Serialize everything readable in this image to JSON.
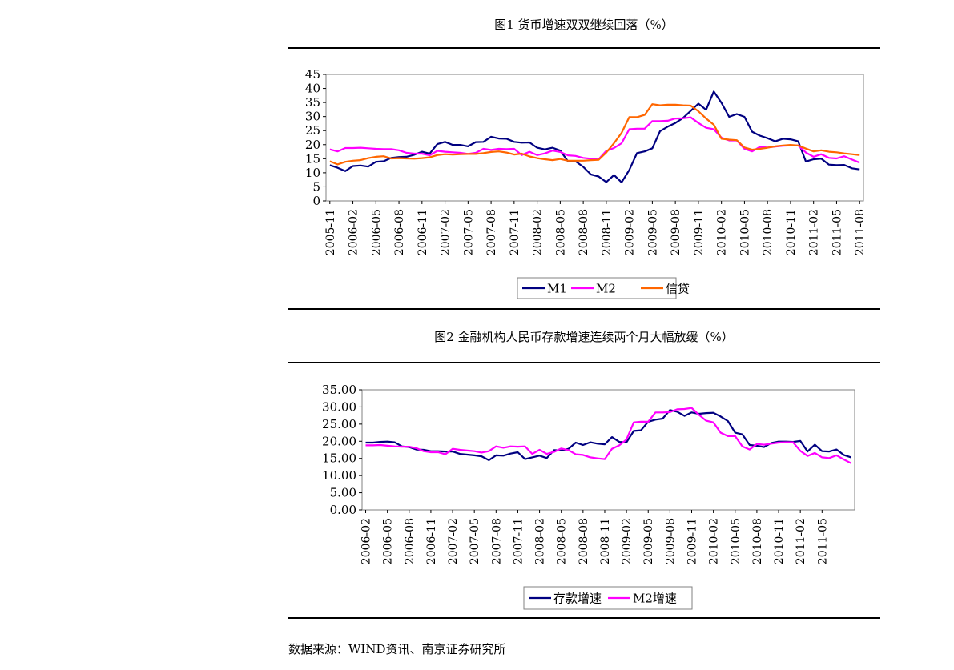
{
  "figure1": {
    "title": "图1 货币增速双双继续回落（%）"
  },
  "figure2": {
    "title": "图2 金融机构人民币存款增速连续两个月大幅放缓（%）"
  },
  "source": "数据来源：WIND资讯、南京证券研究所",
  "colors": {
    "M1": "#000080",
    "M2": "#ff00ff",
    "loan": "#ff6600",
    "deposit": "#000080"
  },
  "chart_data": [
    {
      "type": "line",
      "title": "图1 货币增速双双继续回落（%）",
      "y_ticks": [
        "0",
        "5",
        "10",
        "15",
        "20",
        "25",
        "30",
        "35",
        "40",
        "45"
      ],
      "ylim": [
        0,
        45
      ],
      "x_ticks": [
        "2005-11",
        "2006-02",
        "2006-05",
        "2006-08",
        "2006-11",
        "2007-02",
        "2007-05",
        "2007-08",
        "2007-11",
        "2008-02",
        "2008-05",
        "2008-08",
        "2008-11",
        "2009-02",
        "2009-05",
        "2009-08",
        "2009-11",
        "2010-02",
        "2010-05",
        "2010-08",
        "2010-11",
        "2011-02",
        "2011-05",
        "2011-08"
      ],
      "x_start": "2005-11",
      "legend_position": "bottom",
      "series": [
        {
          "name": "M1",
          "color": "#000080",
          "values": [
            12.7,
            11.8,
            10.6,
            12.4,
            12.6,
            12.2,
            13.9,
            14.1,
            15.3,
            15.6,
            15.7,
            16.4,
            17.5,
            16.8,
            20.2,
            21.0,
            19.9,
            19.9,
            19.4,
            20.9,
            21.0,
            22.8,
            22.2,
            22.1,
            21.0,
            20.7,
            20.8,
            18.9,
            18.3,
            18.9,
            17.9,
            14.1,
            14.1,
            12.1,
            9.4,
            8.7,
            6.7,
            9.2,
            6.6,
            11.0,
            17.0,
            17.6,
            18.7,
            24.8,
            26.4,
            27.7,
            29.5,
            32.0,
            34.6,
            32.4,
            38.9,
            34.9,
            29.9,
            30.9,
            29.9,
            24.6,
            23.2,
            22.3,
            21.2,
            22.1,
            21.9,
            21.2,
            14.0,
            14.8,
            15.0,
            12.9,
            12.7,
            12.8,
            11.6,
            11.2
          ]
        },
        {
          "name": "M2",
          "color": "#ff00ff",
          "values": [
            18.3,
            17.6,
            18.8,
            18.8,
            18.9,
            18.7,
            18.5,
            18.4,
            18.4,
            18.0,
            17.1,
            16.8,
            16.8,
            16.2,
            17.8,
            17.5,
            17.3,
            17.1,
            16.7,
            17.1,
            18.5,
            18.1,
            18.5,
            18.4,
            18.5,
            16.3,
            17.5,
            16.3,
            16.9,
            17.9,
            17.4,
            16.2,
            16.0,
            15.3,
            15.0,
            14.8,
            17.8,
            18.8,
            20.5,
            25.5,
            25.7,
            25.7,
            28.4,
            28.4,
            28.5,
            29.3,
            29.4,
            29.7,
            27.7,
            26.0,
            25.5,
            22.5,
            21.5,
            21.5,
            18.5,
            17.6,
            19.2,
            19.0,
            19.3,
            19.6,
            19.7,
            19.7,
            17.2,
            15.7,
            16.6,
            15.3,
            15.1,
            15.9,
            14.7,
            13.6
          ]
        },
        {
          "name": "信贷",
          "color": "#ff6600",
          "values": [
            14.1,
            13.0,
            13.9,
            14.3,
            14.5,
            15.2,
            15.7,
            15.9,
            15.1,
            15.2,
            15.1,
            15.0,
            15.2,
            15.5,
            16.3,
            16.6,
            16.5,
            16.6,
            16.7,
            16.7,
            17.0,
            17.4,
            17.6,
            17.2,
            16.5,
            16.8,
            15.8,
            15.2,
            14.8,
            14.5,
            14.9,
            14.3,
            14.3,
            14.3,
            14.5,
            14.6,
            17.2,
            20.5,
            24.2,
            29.8,
            29.8,
            30.6,
            34.4,
            34.0,
            34.2,
            34.2,
            34.0,
            33.9,
            31.9,
            29.3,
            27.1,
            22.1,
            21.8,
            21.6,
            19.0,
            18.2,
            18.5,
            18.9,
            19.4,
            19.7,
            19.9,
            19.7,
            18.6,
            17.6,
            18.0,
            17.5,
            17.3,
            16.9,
            16.6,
            16.3
          ]
        }
      ]
    },
    {
      "type": "line",
      "title": "图2 金融机构人民币存款增速连续两个月大幅放缓（%）",
      "y_ticks": [
        "0.00",
        "5.00",
        "10.00",
        "15.00",
        "20.00",
        "25.00",
        "30.00",
        "35.00"
      ],
      "ylim": [
        0,
        35
      ],
      "x_ticks": [
        "2006-02",
        "2006-05",
        "2006-08",
        "2006-11",
        "2007-02",
        "2007-05",
        "2007-08",
        "2007-11",
        "2008-02",
        "2008-05",
        "2008-08",
        "2008-11",
        "2009-02",
        "2009-05",
        "2009-08",
        "2009-11",
        "2010-02",
        "2010-05",
        "2010-08",
        "2010-11",
        "2011-02",
        "2011-05"
      ],
      "x_start": "2006-02",
      "legend_position": "bottom",
      "series": [
        {
          "name": "存款增速",
          "color": "#000080",
          "values": [
            19.6,
            19.6,
            19.8,
            19.9,
            19.7,
            18.5,
            18.3,
            17.6,
            17.5,
            17.1,
            17.1,
            17.0,
            17.0,
            16.3,
            16.1,
            15.9,
            15.6,
            14.5,
            15.9,
            15.8,
            16.4,
            16.8,
            14.8,
            15.3,
            15.8,
            15.1,
            17.4,
            17.3,
            17.8,
            19.6,
            18.9,
            19.7,
            19.3,
            19.1,
            21.2,
            19.8,
            19.7,
            23.0,
            23.2,
            25.7,
            26.3,
            26.6,
            29.1,
            28.6,
            27.4,
            28.4,
            28.0,
            28.2,
            28.3,
            27.2,
            25.9,
            22.5,
            22.0,
            18.9,
            18.7,
            18.3,
            19.5,
            19.9,
            19.9,
            19.8,
            20.1,
            17.0,
            19.0,
            17.1,
            17.0,
            17.6,
            16.0,
            15.3
          ]
        },
        {
          "name": "M2增速",
          "color": "#ff00ff",
          "values": [
            18.8,
            18.8,
            18.9,
            18.7,
            18.5,
            18.4,
            18.4,
            18.0,
            17.1,
            16.8,
            16.8,
            16.2,
            17.8,
            17.5,
            17.3,
            17.1,
            16.7,
            17.1,
            18.5,
            18.1,
            18.5,
            18.4,
            18.5,
            16.3,
            17.5,
            16.3,
            16.9,
            17.9,
            17.4,
            16.2,
            16.0,
            15.3,
            15.0,
            14.8,
            17.8,
            18.8,
            20.5,
            25.5,
            25.7,
            25.7,
            28.4,
            28.4,
            28.5,
            29.3,
            29.4,
            29.7,
            27.7,
            26.0,
            25.5,
            22.5,
            21.5,
            21.5,
            18.5,
            17.6,
            19.2,
            19.0,
            19.3,
            19.6,
            19.7,
            19.7,
            17.2,
            15.7,
            16.6,
            15.3,
            15.1,
            15.9,
            14.7,
            13.6
          ]
        }
      ]
    }
  ]
}
